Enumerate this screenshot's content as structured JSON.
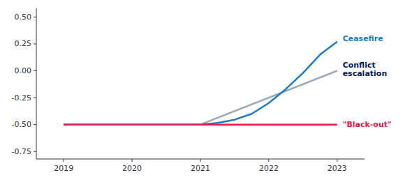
{
  "chart_data": {
    "type": "line",
    "xlim": [
      2018.6,
      2023.4
    ],
    "ylim": [
      -0.82,
      0.58
    ],
    "xticks": [
      2019,
      2020,
      2021,
      2022,
      2023
    ],
    "yticks": [
      {
        "value": 0.5,
        "label": "0.50"
      },
      {
        "value": 0.25,
        "label": "0.25"
      },
      {
        "value": 0.0,
        "label": "0.00"
      },
      {
        "value": -0.25,
        "label": "-0.25"
      },
      {
        "value": -0.5,
        "label": "-0.50"
      },
      {
        "value": -0.75,
        "label": "-0.75"
      }
    ],
    "series": [
      {
        "color": "#9ba8b5",
        "x": [
          2019,
          2020,
          2021,
          2023.0
        ],
        "values": [
          -0.5,
          -0.5,
          -0.5,
          0.0
        ]
      },
      {
        "color": "#1a7cc9",
        "x": [
          2019,
          2020,
          2021,
          2021.25,
          2021.5,
          2021.75,
          2022.0,
          2022.25,
          2022.5,
          2022.75,
          2023.0
        ],
        "values": [
          -0.5,
          -0.5,
          -0.5,
          -0.485,
          -0.455,
          -0.4,
          -0.3,
          -0.17,
          -0.02,
          0.15,
          0.27
        ]
      },
      {
        "color": "#e8174a",
        "x": [
          2019,
          2020,
          2021,
          2022,
          2023.0
        ],
        "values": [
          -0.5,
          -0.5,
          -0.5,
          -0.5,
          -0.5
        ]
      }
    ],
    "annotations": [
      {
        "text": "Ceasefire",
        "x": 2023.08,
        "y": 0.3,
        "color": "#1a7cc9"
      },
      {
        "text": "Conflict",
        "x": 2023.08,
        "y": 0.055,
        "color": "#001a5c"
      },
      {
        "text": "escalation",
        "x": 2023.08,
        "y": -0.025,
        "color": "#001a5c"
      },
      {
        "text": "\"Black-out\"",
        "x": 2023.08,
        "y": -0.5,
        "color": "#e8174a"
      }
    ]
  }
}
